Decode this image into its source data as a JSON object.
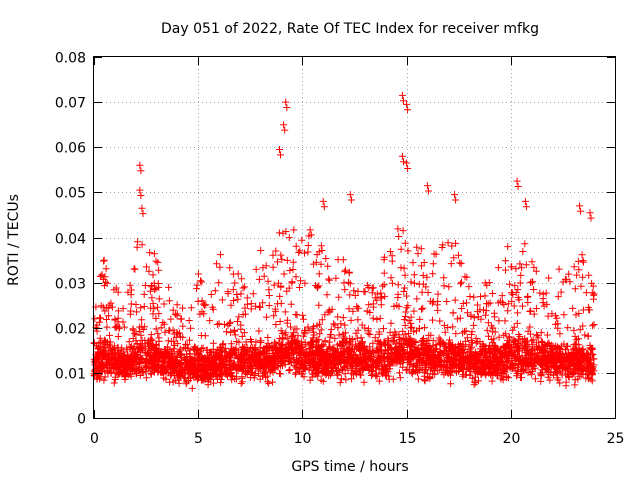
{
  "chart_data": {
    "type": "scatter",
    "title": "Day 051 of 2022, Rate Of TEC Index for receiver mfkg",
    "xlabel": "GPS time / hours",
    "ylabel": "ROTI / TECUs",
    "xlim": [
      0,
      25
    ],
    "ylim": [
      0,
      0.08
    ],
    "grid": true,
    "x_ticks": [
      "0",
      "5",
      "10",
      "15",
      "20",
      "25"
    ],
    "y_ticks": [
      "0",
      "0.01",
      "0.02",
      "0.03",
      "0.04",
      "0.05",
      "0.06",
      "0.07",
      "0.08"
    ],
    "marker": "+",
    "marker_color": "#ff0000",
    "series": [
      {
        "name": "ROTI",
        "color": "#ff0000",
        "notable_peaks": [
          {
            "x": 2.2,
            "y": 0.056
          },
          {
            "x": 2.2,
            "y": 0.0505
          },
          {
            "x": 2.3,
            "y": 0.0465
          },
          {
            "x": 8.9,
            "y": 0.0595
          },
          {
            "x": 9.1,
            "y": 0.065
          },
          {
            "x": 9.2,
            "y": 0.07
          },
          {
            "x": 14.8,
            "y": 0.0715
          },
          {
            "x": 15.0,
            "y": 0.0695
          },
          {
            "x": 14.8,
            "y": 0.058
          },
          {
            "x": 15.0,
            "y": 0.0565
          },
          {
            "x": 16.0,
            "y": 0.0515
          },
          {
            "x": 17.3,
            "y": 0.0495
          },
          {
            "x": 20.3,
            "y": 0.0525
          },
          {
            "x": 20.7,
            "y": 0.048
          },
          {
            "x": 23.3,
            "y": 0.047
          },
          {
            "x": 23.8,
            "y": 0.0455
          },
          {
            "x": 12.3,
            "y": 0.0495
          },
          {
            "x": 11.0,
            "y": 0.048
          }
        ],
        "envelope": {
          "x": [
            0,
            0.5,
            1,
            1.5,
            2,
            2.5,
            3,
            3.5,
            4,
            4.5,
            5,
            5.5,
            6,
            6.5,
            7,
            7.5,
            8,
            8.5,
            9,
            9.5,
            10,
            10.5,
            11,
            11.5,
            12,
            12.5,
            13,
            13.5,
            14,
            14.5,
            15,
            15.5,
            16,
            16.5,
            17,
            17.5,
            18,
            18.5,
            19,
            19.5,
            20,
            20.5,
            21,
            21.5,
            22,
            22.5,
            23,
            23.5,
            24
          ],
          "median": [
            0.01,
            0.012,
            0.011,
            0.01,
            0.012,
            0.012,
            0.011,
            0.011,
            0.01,
            0.01,
            0.01,
            0.01,
            0.011,
            0.011,
            0.011,
            0.011,
            0.011,
            0.011,
            0.013,
            0.013,
            0.012,
            0.012,
            0.011,
            0.011,
            0.012,
            0.012,
            0.012,
            0.011,
            0.012,
            0.013,
            0.013,
            0.012,
            0.012,
            0.012,
            0.011,
            0.011,
            0.011,
            0.011,
            0.011,
            0.011,
            0.012,
            0.012,
            0.012,
            0.012,
            0.011,
            0.011,
            0.011,
            0.011,
            0.01
          ],
          "upper": [
            0.025,
            0.036,
            0.03,
            0.024,
            0.04,
            0.038,
            0.036,
            0.032,
            0.025,
            0.024,
            0.033,
            0.025,
            0.037,
            0.034,
            0.032,
            0.028,
            0.038,
            0.035,
            0.045,
            0.043,
            0.042,
            0.044,
            0.04,
            0.03,
            0.044,
            0.03,
            0.03,
            0.029,
            0.038,
            0.042,
            0.043,
            0.038,
            0.04,
            0.036,
            0.042,
            0.038,
            0.03,
            0.028,
            0.032,
            0.034,
            0.04,
            0.042,
            0.036,
            0.03,
            0.032,
            0.035,
            0.038,
            0.036,
            0.03
          ],
          "lower": [
            0.005,
            0.005,
            0.005,
            0.005,
            0.005,
            0.005,
            0.005,
            0.005,
            0.005,
            0.004,
            0.004,
            0.004,
            0.005,
            0.004,
            0.004,
            0.005,
            0.005,
            0.005,
            0.005,
            0.005,
            0.005,
            0.005,
            0.005,
            0.005,
            0.005,
            0.004,
            0.005,
            0.005,
            0.004,
            0.005,
            0.005,
            0.005,
            0.005,
            0.005,
            0.005,
            0.005,
            0.005,
            0.005,
            0.005,
            0.005,
            0.005,
            0.005,
            0.005,
            0.005,
            0.005,
            0.004,
            0.004,
            0.004,
            0.005
          ]
        }
      }
    ]
  }
}
